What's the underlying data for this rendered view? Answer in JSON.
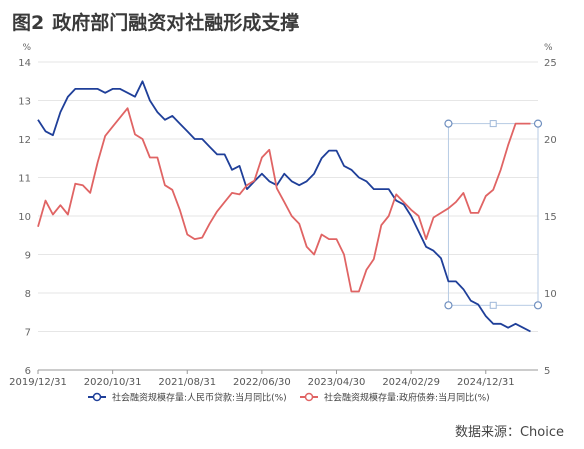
{
  "figure": {
    "label": "图2",
    "title": "政府部门融资对社融形成支撑",
    "source": "数据来源：Choice"
  },
  "chart_data": {
    "type": "line",
    "title": "政府部门融资对社融形成支撑",
    "left_axis": {
      "unit": "%",
      "range": [
        6,
        14
      ],
      "ticks": [
        6,
        7,
        8,
        9,
        10,
        11,
        12,
        13,
        14
      ]
    },
    "right_axis": {
      "unit": "%",
      "range": [
        5,
        25
      ],
      "ticks": [
        5,
        10,
        15,
        20,
        25
      ]
    },
    "x_ticks": [
      "2019/12/31",
      "2020/10/31",
      "2021/08/31",
      "2022/06/30",
      "2023/04/30",
      "2024/02/29",
      "2024/12/31"
    ],
    "x_range": [
      "2019-12",
      "2025-07"
    ],
    "grid": "horizontal",
    "legend_position": "bottom",
    "series": [
      {
        "name": "社会融资规模存量:人民币贷款:当月同比(%)",
        "axis": "left",
        "color": "#1f3f99",
        "x": [
          "2019-12",
          "2020-01",
          "2020-02",
          "2020-03",
          "2020-04",
          "2020-05",
          "2020-06",
          "2020-07",
          "2020-08",
          "2020-09",
          "2020-10",
          "2020-11",
          "2020-12",
          "2021-01",
          "2021-02",
          "2021-03",
          "2021-04",
          "2021-05",
          "2021-06",
          "2021-07",
          "2021-08",
          "2021-09",
          "2021-10",
          "2021-11",
          "2021-12",
          "2022-01",
          "2022-02",
          "2022-03",
          "2022-04",
          "2022-05",
          "2022-06",
          "2022-07",
          "2022-08",
          "2022-09",
          "2022-10",
          "2022-11",
          "2022-12",
          "2023-01",
          "2023-02",
          "2023-03",
          "2023-04",
          "2023-05",
          "2023-06",
          "2023-07",
          "2023-08",
          "2023-09",
          "2023-10",
          "2023-11",
          "2023-12",
          "2024-01",
          "2024-02",
          "2024-03",
          "2024-04",
          "2024-05",
          "2024-06",
          "2024-07",
          "2024-08",
          "2024-09",
          "2024-10",
          "2024-11",
          "2024-12",
          "2025-01",
          "2025-02",
          "2025-03",
          "2025-04",
          "2025-05",
          "2025-06"
        ],
        "values": [
          12.5,
          12.2,
          12.1,
          12.7,
          13.1,
          13.3,
          13.3,
          13.3,
          13.3,
          13.2,
          13.3,
          13.3,
          13.2,
          13.1,
          13.5,
          13.0,
          12.7,
          12.5,
          12.6,
          12.4,
          12.2,
          12.0,
          12.0,
          11.8,
          11.6,
          11.6,
          11.2,
          11.3,
          10.7,
          10.9,
          11.1,
          10.9,
          10.8,
          11.1,
          10.9,
          10.8,
          10.9,
          11.1,
          11.5,
          11.7,
          11.7,
          11.3,
          11.2,
          11.0,
          10.9,
          10.7,
          10.7,
          10.7,
          10.4,
          10.3,
          10.0,
          9.6,
          9.2,
          9.1,
          8.9,
          8.3,
          8.3,
          8.1,
          7.8,
          7.7,
          7.4,
          7.2,
          7.2,
          7.1,
          7.2,
          7.1,
          7.0
        ]
      },
      {
        "name": "社会融资规模存量:政府债券:当月同比(%)",
        "axis": "right",
        "color": "#e06464",
        "x": [
          "2019-12",
          "2020-01",
          "2020-02",
          "2020-03",
          "2020-04",
          "2020-05",
          "2020-06",
          "2020-07",
          "2020-08",
          "2020-09",
          "2020-10",
          "2020-11",
          "2020-12",
          "2021-01",
          "2021-02",
          "2021-03",
          "2021-04",
          "2021-05",
          "2021-06",
          "2021-07",
          "2021-08",
          "2021-09",
          "2021-10",
          "2021-11",
          "2021-12",
          "2022-01",
          "2022-02",
          "2022-03",
          "2022-04",
          "2022-05",
          "2022-06",
          "2022-07",
          "2022-08",
          "2022-09",
          "2022-10",
          "2022-11",
          "2022-12",
          "2023-01",
          "2023-02",
          "2023-03",
          "2023-04",
          "2023-05",
          "2023-06",
          "2023-07",
          "2023-08",
          "2023-09",
          "2023-10",
          "2023-11",
          "2023-12",
          "2024-01",
          "2024-02",
          "2024-03",
          "2024-04",
          "2024-05",
          "2024-06",
          "2024-07",
          "2024-08",
          "2024-09",
          "2024-10",
          "2024-11",
          "2024-12",
          "2025-01",
          "2025-02",
          "2025-03",
          "2025-04",
          "2025-05",
          "2025-06"
        ],
        "values": [
          14.3,
          16.0,
          15.1,
          15.7,
          15.1,
          17.1,
          17.0,
          16.5,
          18.5,
          20.2,
          20.8,
          21.4,
          22.0,
          20.3,
          20.0,
          18.8,
          18.8,
          17.0,
          16.7,
          15.4,
          13.8,
          13.5,
          13.6,
          14.5,
          15.3,
          15.9,
          16.5,
          16.4,
          17.0,
          17.3,
          18.8,
          19.3,
          16.8,
          15.9,
          15.0,
          14.5,
          13.0,
          12.5,
          13.8,
          13.5,
          13.5,
          12.5,
          10.1,
          10.1,
          11.5,
          12.2,
          14.4,
          15.0,
          16.4,
          15.9,
          15.4,
          15.0,
          13.5,
          14.9,
          15.2,
          15.5,
          15.9,
          16.5,
          15.2,
          15.2,
          16.3,
          16.7,
          18.0,
          19.6,
          21.0,
          21.0,
          21.0
        ]
      }
    ]
  }
}
